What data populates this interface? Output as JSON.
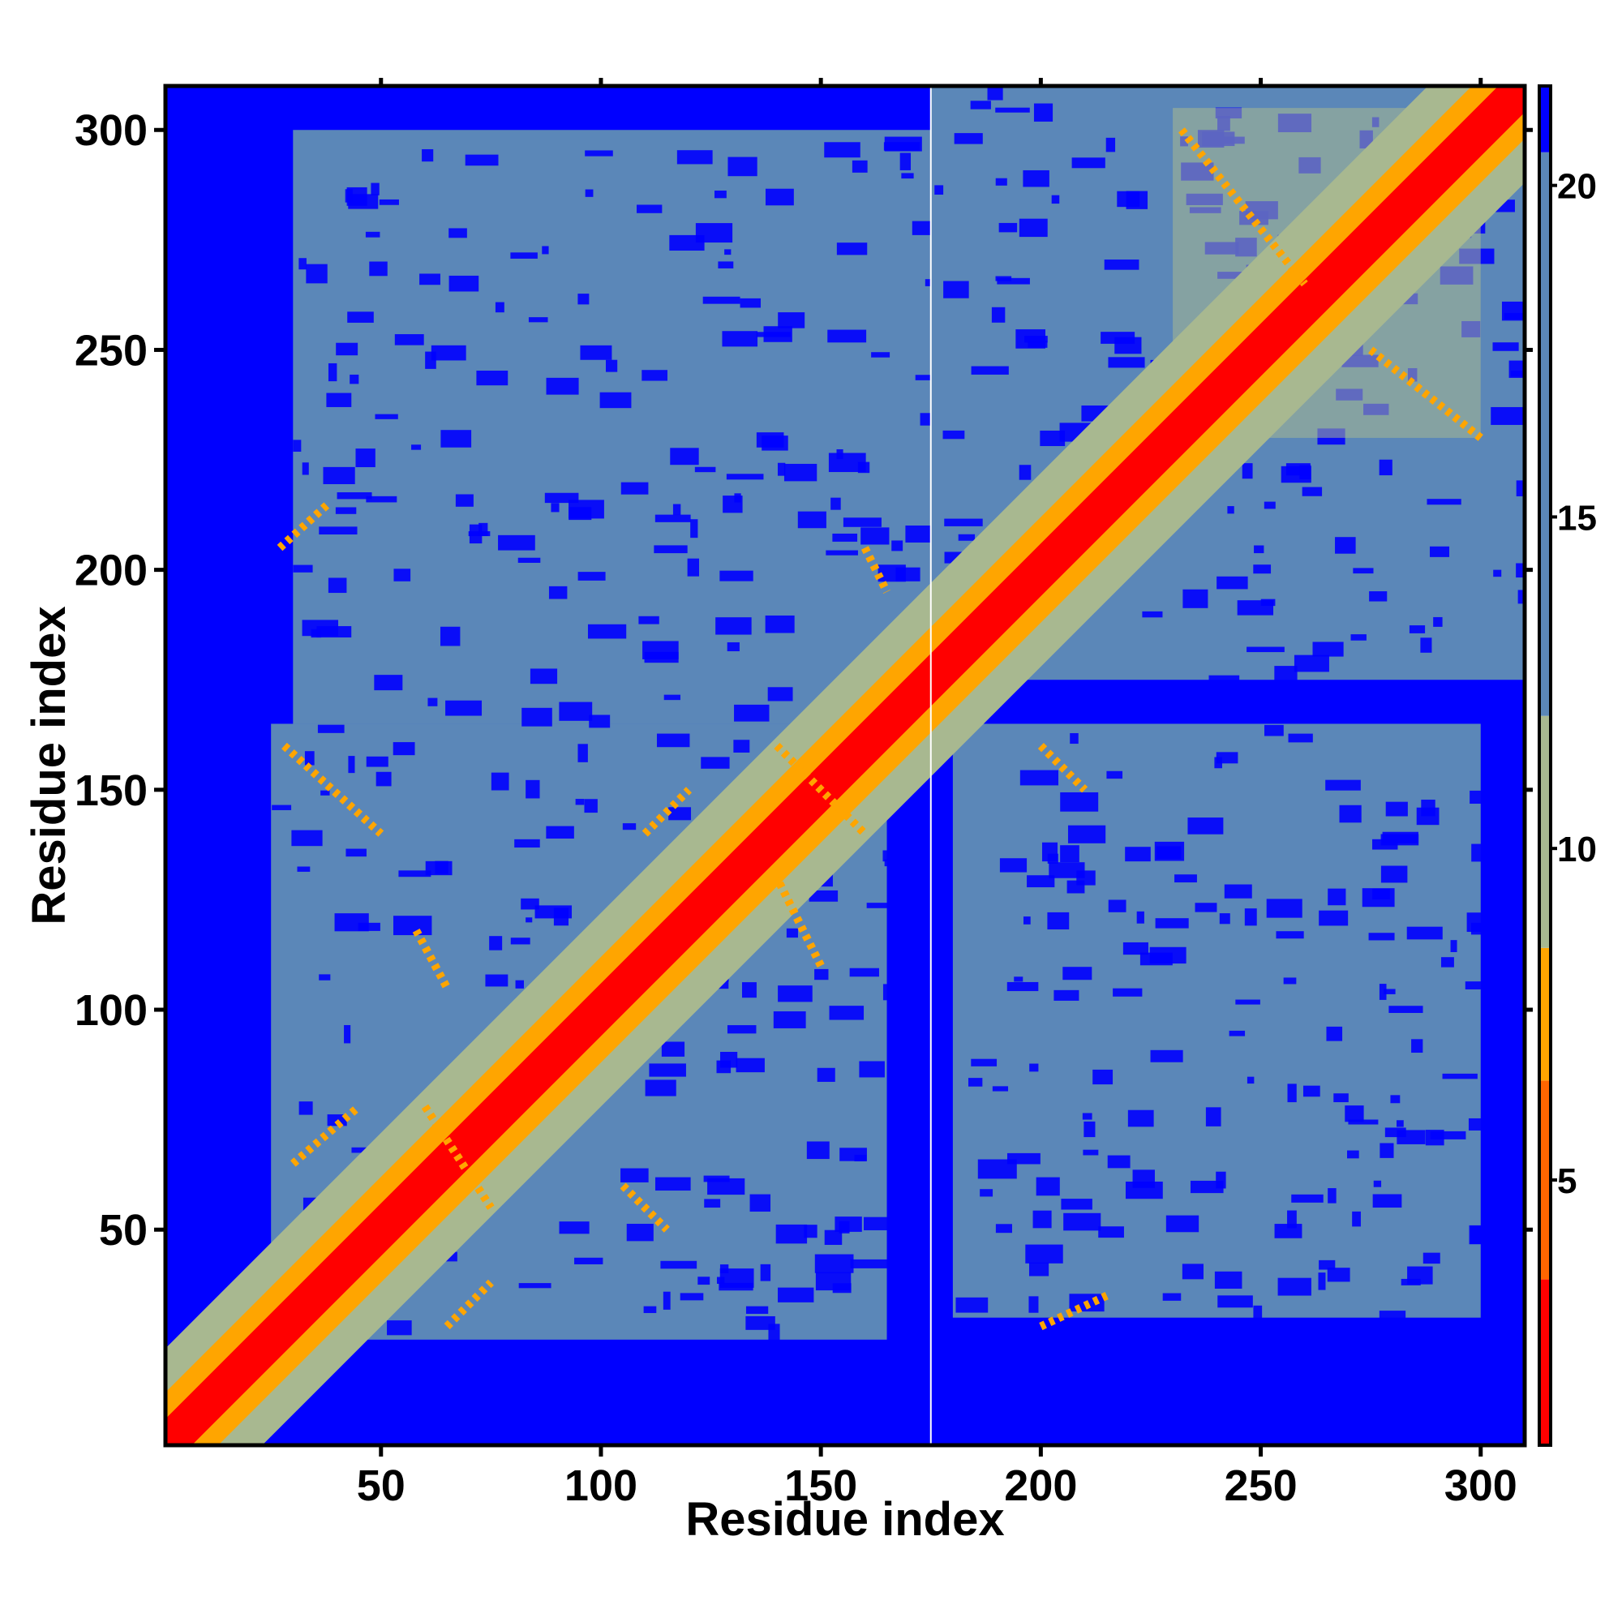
{
  "chart_data": {
    "type": "heatmap",
    "title": "",
    "xlabel": "Residue index",
    "ylabel": "Residue index",
    "xlim": [
      1,
      310
    ],
    "ylim": [
      1,
      310
    ],
    "x_ticks": [
      50,
      100,
      150,
      200,
      250,
      300
    ],
    "y_ticks": [
      50,
      100,
      150,
      200,
      250,
      300
    ],
    "x_tick_labels": [
      "50",
      "100",
      "150",
      "200",
      "250",
      "300"
    ],
    "y_tick_labels": [
      "50",
      "100",
      "150",
      "200",
      "250",
      "300"
    ],
    "colorbar": {
      "ticks": [
        5,
        10,
        15,
        20
      ],
      "tick_labels": [
        "5",
        "10",
        "15",
        "20"
      ],
      "range": [
        1,
        21.5
      ],
      "bands": [
        {
          "from": 1,
          "to": 3.5,
          "color": "#ff0000"
        },
        {
          "from": 3.5,
          "to": 6.5,
          "color": "#ff6600"
        },
        {
          "from": 6.5,
          "to": 8.5,
          "color": "#ffa500"
        },
        {
          "from": 8.5,
          "to": 12,
          "color": "#a8b890"
        },
        {
          "from": 12,
          "to": 20.5,
          "color": "#5b87b8"
        },
        {
          "from": 20.5,
          "to": 21.5,
          "color": "#0000ff"
        }
      ]
    },
    "colors": {
      "far": "#0000ff",
      "mid": "#5b87b8",
      "light": "#a8b890",
      "orange": "#ffa500",
      "red": "#ff0000",
      "gap_line": "#ffffff"
    },
    "gap_line_x": 175,
    "contact_clusters": [
      [
        30,
        160
      ],
      [
        30,
        160
      ],
      [
        200,
        310
      ],
      [
        200,
        310
      ]
    ],
    "blocks": [
      {
        "x": [
          25,
          165
        ],
        "y": [
          25,
          165
        ],
        "level": "mid"
      },
      {
        "x": [
          30,
          175
        ],
        "y": [
          165,
          300
        ],
        "level": "mid"
      },
      {
        "x": [
          180,
          300
        ],
        "y": [
          30,
          165
        ],
        "level": "mid"
      },
      {
        "x": [
          175,
          310
        ],
        "y": [
          175,
          310
        ],
        "level": "mid"
      },
      {
        "x": [
          230,
          300
        ],
        "y": [
          230,
          305
        ],
        "level": "light"
      }
    ],
    "contact_arcs": [
      {
        "points": [
          [
            27,
            205
          ],
          [
            38,
            215
          ]
        ]
      },
      {
        "points": [
          [
            28,
            160
          ],
          [
            50,
            140
          ]
        ]
      },
      {
        "points": [
          [
            58,
            118
          ],
          [
            65,
            105
          ]
        ]
      },
      {
        "points": [
          [
            110,
            140
          ],
          [
            120,
            150
          ]
        ]
      },
      {
        "points": [
          [
            140,
            160
          ],
          [
            160,
            140
          ]
        ]
      },
      {
        "points": [
          [
            150,
            110
          ],
          [
            140,
            130
          ]
        ]
      },
      {
        "points": [
          [
            60,
            78
          ],
          [
            75,
            55
          ]
        ]
      },
      {
        "points": [
          [
            30,
            65
          ],
          [
            45,
            78
          ]
        ]
      },
      {
        "points": [
          [
            105,
            60
          ],
          [
            115,
            50
          ]
        ]
      },
      {
        "points": [
          [
            65,
            28
          ],
          [
            75,
            38
          ]
        ]
      },
      {
        "points": [
          [
            160,
            205
          ],
          [
            165,
            195
          ]
        ]
      },
      {
        "points": [
          [
            200,
            160
          ],
          [
            210,
            150
          ]
        ]
      },
      {
        "points": [
          [
            200,
            28
          ],
          [
            215,
            35
          ]
        ]
      },
      {
        "points": [
          [
            232,
            300
          ],
          [
            260,
            265
          ]
        ]
      },
      {
        "points": [
          [
            275,
            250
          ],
          [
            300,
            230
          ]
        ]
      }
    ]
  }
}
